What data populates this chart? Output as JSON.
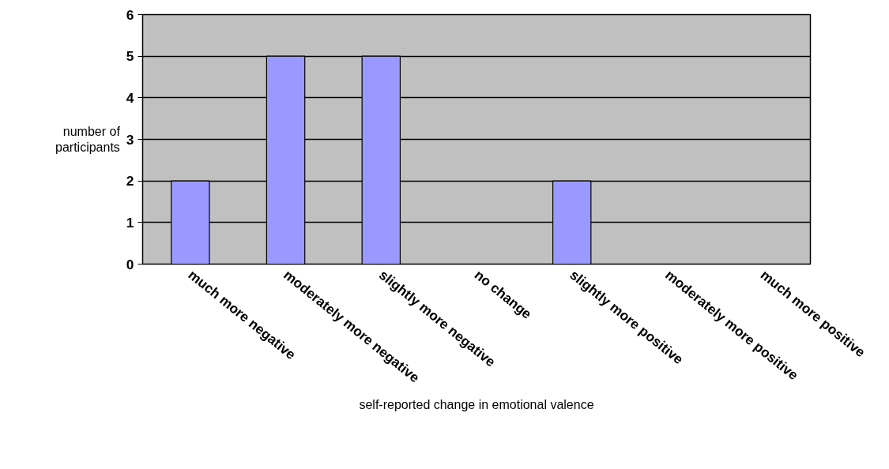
{
  "chart_data": {
    "type": "bar",
    "xlabel": "self-reported change in emotional valence",
    "ylabel": "number of participants",
    "categories": [
      "much more negative",
      "moderately more negative",
      "slightly more negative",
      "no change",
      "slightly more positive",
      "moderately more positive",
      "much more positive"
    ],
    "values": [
      2,
      5,
      5,
      0,
      2,
      0,
      0
    ],
    "color": "#9999ff",
    "ylim": [
      0,
      6
    ],
    "yticks": [
      0,
      1,
      2,
      3,
      4,
      5,
      6
    ],
    "grid": "y"
  }
}
